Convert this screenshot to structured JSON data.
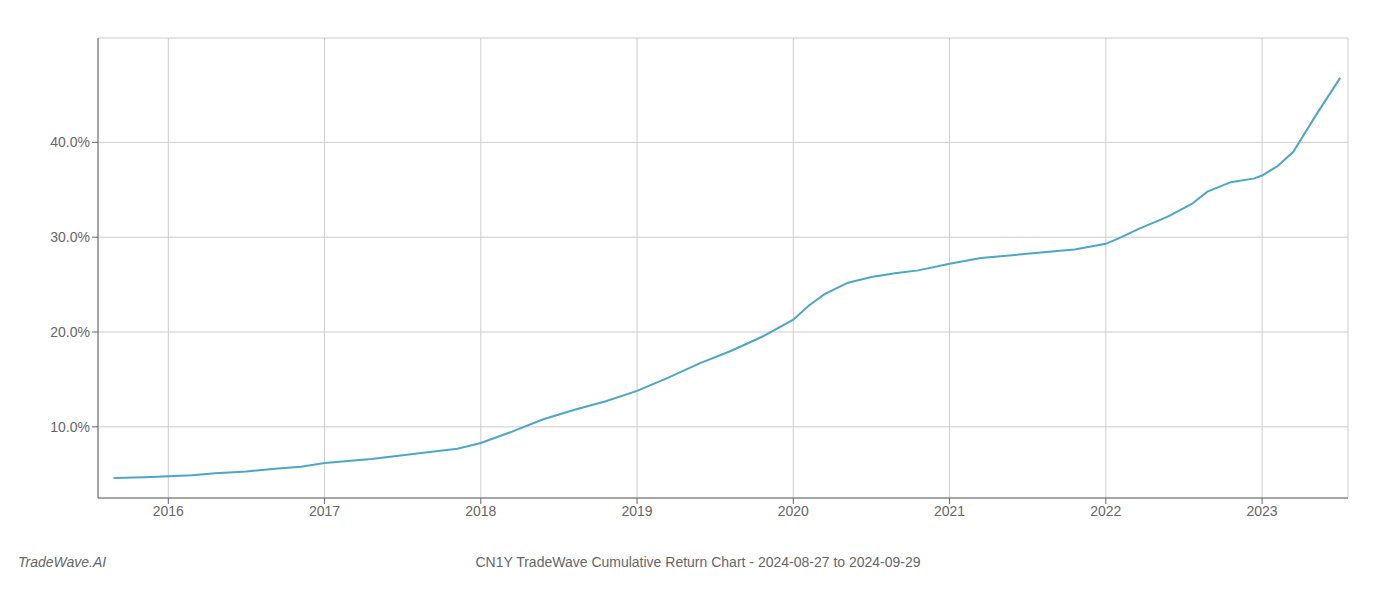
{
  "chart_data": {
    "type": "line",
    "title": "CN1Y TradeWave Cumulative Return Chart - 2024-08-27 to 2024-09-29",
    "annotations": [
      "TradeWave.AI"
    ],
    "x": [
      2015.65,
      2015.85,
      2016.0,
      2016.15,
      2016.3,
      2016.5,
      2016.7,
      2016.85,
      2017.0,
      2017.15,
      2017.3,
      2017.5,
      2017.7,
      2017.85,
      2018.0,
      2018.2,
      2018.4,
      2018.6,
      2018.8,
      2019.0,
      2019.2,
      2019.4,
      2019.6,
      2019.8,
      2020.0,
      2020.1,
      2020.2,
      2020.35,
      2020.5,
      2020.65,
      2020.8,
      2021.0,
      2021.2,
      2021.4,
      2021.6,
      2021.8,
      2022.0,
      2022.1,
      2022.2,
      2022.4,
      2022.55,
      2022.65,
      2022.8,
      2022.95,
      2023.0,
      2023.1,
      2023.2,
      2023.35,
      2023.5
    ],
    "values": [
      0.046,
      0.047,
      0.048,
      0.049,
      0.051,
      0.053,
      0.056,
      0.058,
      0.062,
      0.064,
      0.066,
      0.07,
      0.074,
      0.077,
      0.083,
      0.095,
      0.108,
      0.118,
      0.127,
      0.138,
      0.152,
      0.167,
      0.18,
      0.195,
      0.213,
      0.228,
      0.24,
      0.252,
      0.258,
      0.262,
      0.265,
      0.272,
      0.278,
      0.281,
      0.284,
      0.287,
      0.293,
      0.3,
      0.308,
      0.322,
      0.335,
      0.348,
      0.358,
      0.362,
      0.365,
      0.375,
      0.39,
      0.43,
      0.468
    ],
    "color": "#4da6c8",
    "xlim": [
      2015.55,
      2023.55
    ],
    "xticks": [
      2016,
      2017,
      2018,
      2019,
      2020,
      2021,
      2022,
      2023
    ],
    "ylim": [
      0.025,
      0.51
    ],
    "yticks": [
      {
        "value": 0.1,
        "label": "10.0%"
      },
      {
        "value": 0.2,
        "label": "20.0%"
      },
      {
        "value": 0.3,
        "label": "30.0%"
      },
      {
        "value": 0.4,
        "label": "40.0%"
      }
    ],
    "grid": true
  }
}
